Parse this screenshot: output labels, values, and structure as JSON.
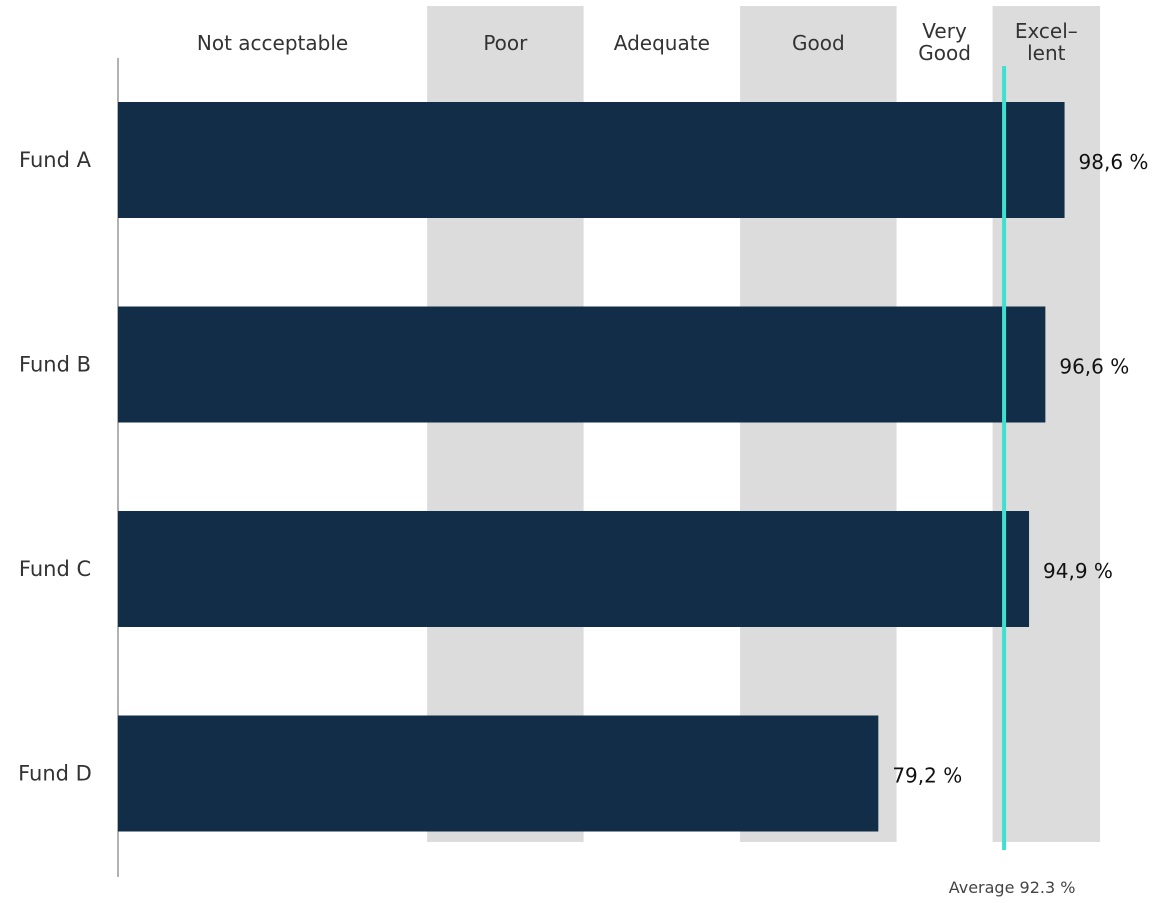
{
  "chart_data": {
    "type": "bar",
    "orientation": "horizontal",
    "categories": [
      "Fund A",
      "Fund B",
      "Fund C",
      "Fund D"
    ],
    "values": [
      98.6,
      96.6,
      94.9,
      79.2
    ],
    "value_labels": [
      "98,6 %",
      "96,6 %",
      "94,9 %",
      "79,2 %"
    ],
    "xlim": [
      0,
      100
    ],
    "bands": [
      {
        "label": [
          "Not acceptable"
        ],
        "from": 0,
        "to": 32.2,
        "shaded": false
      },
      {
        "label": [
          "Poor"
        ],
        "from": 32.2,
        "to": 48.5,
        "shaded": true
      },
      {
        "label": [
          "Adequate"
        ],
        "from": 48.5,
        "to": 64.8,
        "shaded": false
      },
      {
        "label": [
          "Good"
        ],
        "from": 64.8,
        "to": 81.1,
        "shaded": true
      },
      {
        "label": [
          "Very",
          "Good"
        ],
        "from": 81.1,
        "to": 91.1,
        "shaded": false
      },
      {
        "label": [
          "Excel–",
          "lent"
        ],
        "from": 91.1,
        "to": 102.3,
        "shaded": true
      }
    ],
    "average": {
      "value": 92.3,
      "label": "Average 92.3 %"
    },
    "colors": {
      "bar": "#112d47",
      "band": "#dcdcdc",
      "average_line": "#40e0d0",
      "axis": "#999999"
    },
    "grid": false,
    "legend": "none"
  }
}
